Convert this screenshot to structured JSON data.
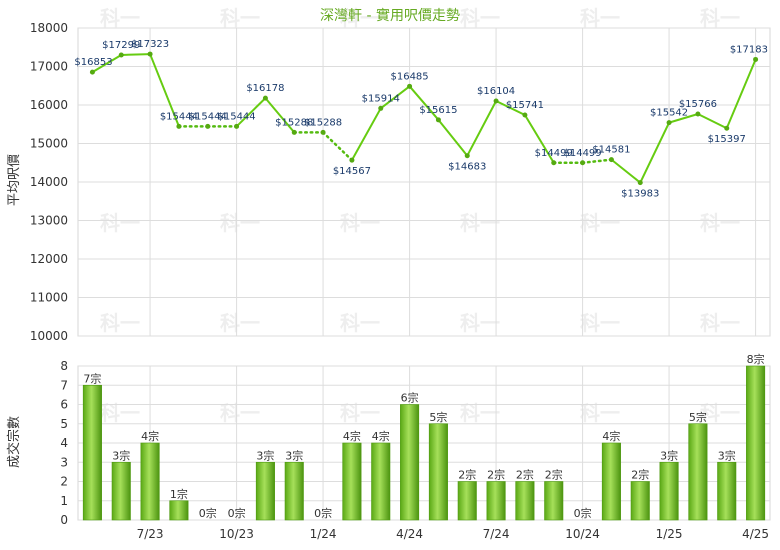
{
  "chart_data": [
    {
      "type": "line",
      "title": "深灣軒 - 實用呎價走勢",
      "ylabel": "平均呎價",
      "ylim": [
        10000,
        18000
      ],
      "yticks": [
        "10000",
        "11000",
        "12000",
        "13000",
        "14000",
        "15000",
        "16000",
        "17000",
        "18000"
      ],
      "x_tick_labels": [
        "7/23",
        "10/23",
        "1/24",
        "4/24",
        "7/24",
        "10/24",
        "1/25",
        "4/25"
      ],
      "values": [
        16853,
        17299,
        17323,
        15444,
        15444,
        15444,
        16178,
        15288,
        15288,
        14567,
        15914,
        16485,
        15615,
        14683,
        16104,
        15741,
        14499,
        14499,
        14581,
        13983,
        15542,
        15766,
        15397,
        17183
      ],
      "point_labels": [
        "$16853",
        "$17299",
        "$17323",
        "$15444",
        "$15444",
        "$15444",
        "$16178",
        "$15288",
        "$15288",
        "$14567",
        "$15914",
        "$16485",
        "$15615",
        "$14683",
        "$16104",
        "$15741",
        "$14499",
        "$14499",
        "$14581",
        "$13983",
        "$15542",
        "$15766",
        "$15397",
        "$17183"
      ],
      "interpolated": [
        false,
        false,
        false,
        false,
        true,
        false,
        false,
        false,
        true,
        false,
        false,
        false,
        false,
        false,
        false,
        false,
        false,
        true,
        false,
        false,
        false,
        false,
        false,
        false
      ],
      "colors": {
        "line": "#66cc11",
        "dotted": "#55bb11"
      },
      "grid": true
    },
    {
      "type": "bar",
      "ylabel": "成交宗數",
      "ylim": [
        0,
        8
      ],
      "yticks": [
        "0",
        "1",
        "2",
        "3",
        "4",
        "5",
        "6",
        "7",
        "8"
      ],
      "x_tick_labels": [
        "7/23",
        "10/23",
        "1/24",
        "4/24",
        "7/24",
        "10/24",
        "1/25",
        "4/25"
      ],
      "values": [
        7,
        3,
        4,
        1,
        0,
        0,
        3,
        3,
        0,
        4,
        4,
        6,
        5,
        2,
        2,
        2,
        2,
        0,
        4,
        2,
        3,
        5,
        3,
        8
      ],
      "bar_labels": [
        "7宗",
        "3宗",
        "4宗",
        "1宗",
        "0宗",
        "0宗",
        "3宗",
        "3宗",
        "0宗",
        "4宗",
        "4宗",
        "6宗",
        "5宗",
        "2宗",
        "2宗",
        "2宗",
        "2宗",
        "0宗",
        "4宗",
        "2宗",
        "3宗",
        "5宗",
        "3宗",
        "8宗"
      ],
      "colors": {
        "bar": "#77cc22",
        "bar_dark": "#4e9a10"
      },
      "grid": true
    }
  ],
  "watermark": "科一"
}
